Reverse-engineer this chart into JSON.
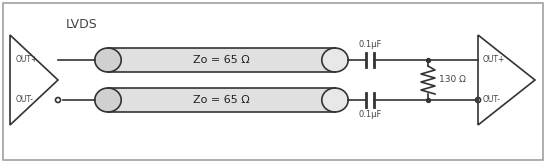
{
  "bg_color": "#ffffff",
  "border_color": "#888888",
  "line_color": "#333333",
  "text_color": "#444444",
  "lvds_label": "LVDS",
  "out_plus_label": "OUT+",
  "out_minus_label": "OUT-",
  "zo_label": "Zo = 65 Ω",
  "cap_label": "0.1μF",
  "res_label": "130 Ω",
  "fig_width": 5.46,
  "fig_height": 1.63,
  "dpi": 100
}
